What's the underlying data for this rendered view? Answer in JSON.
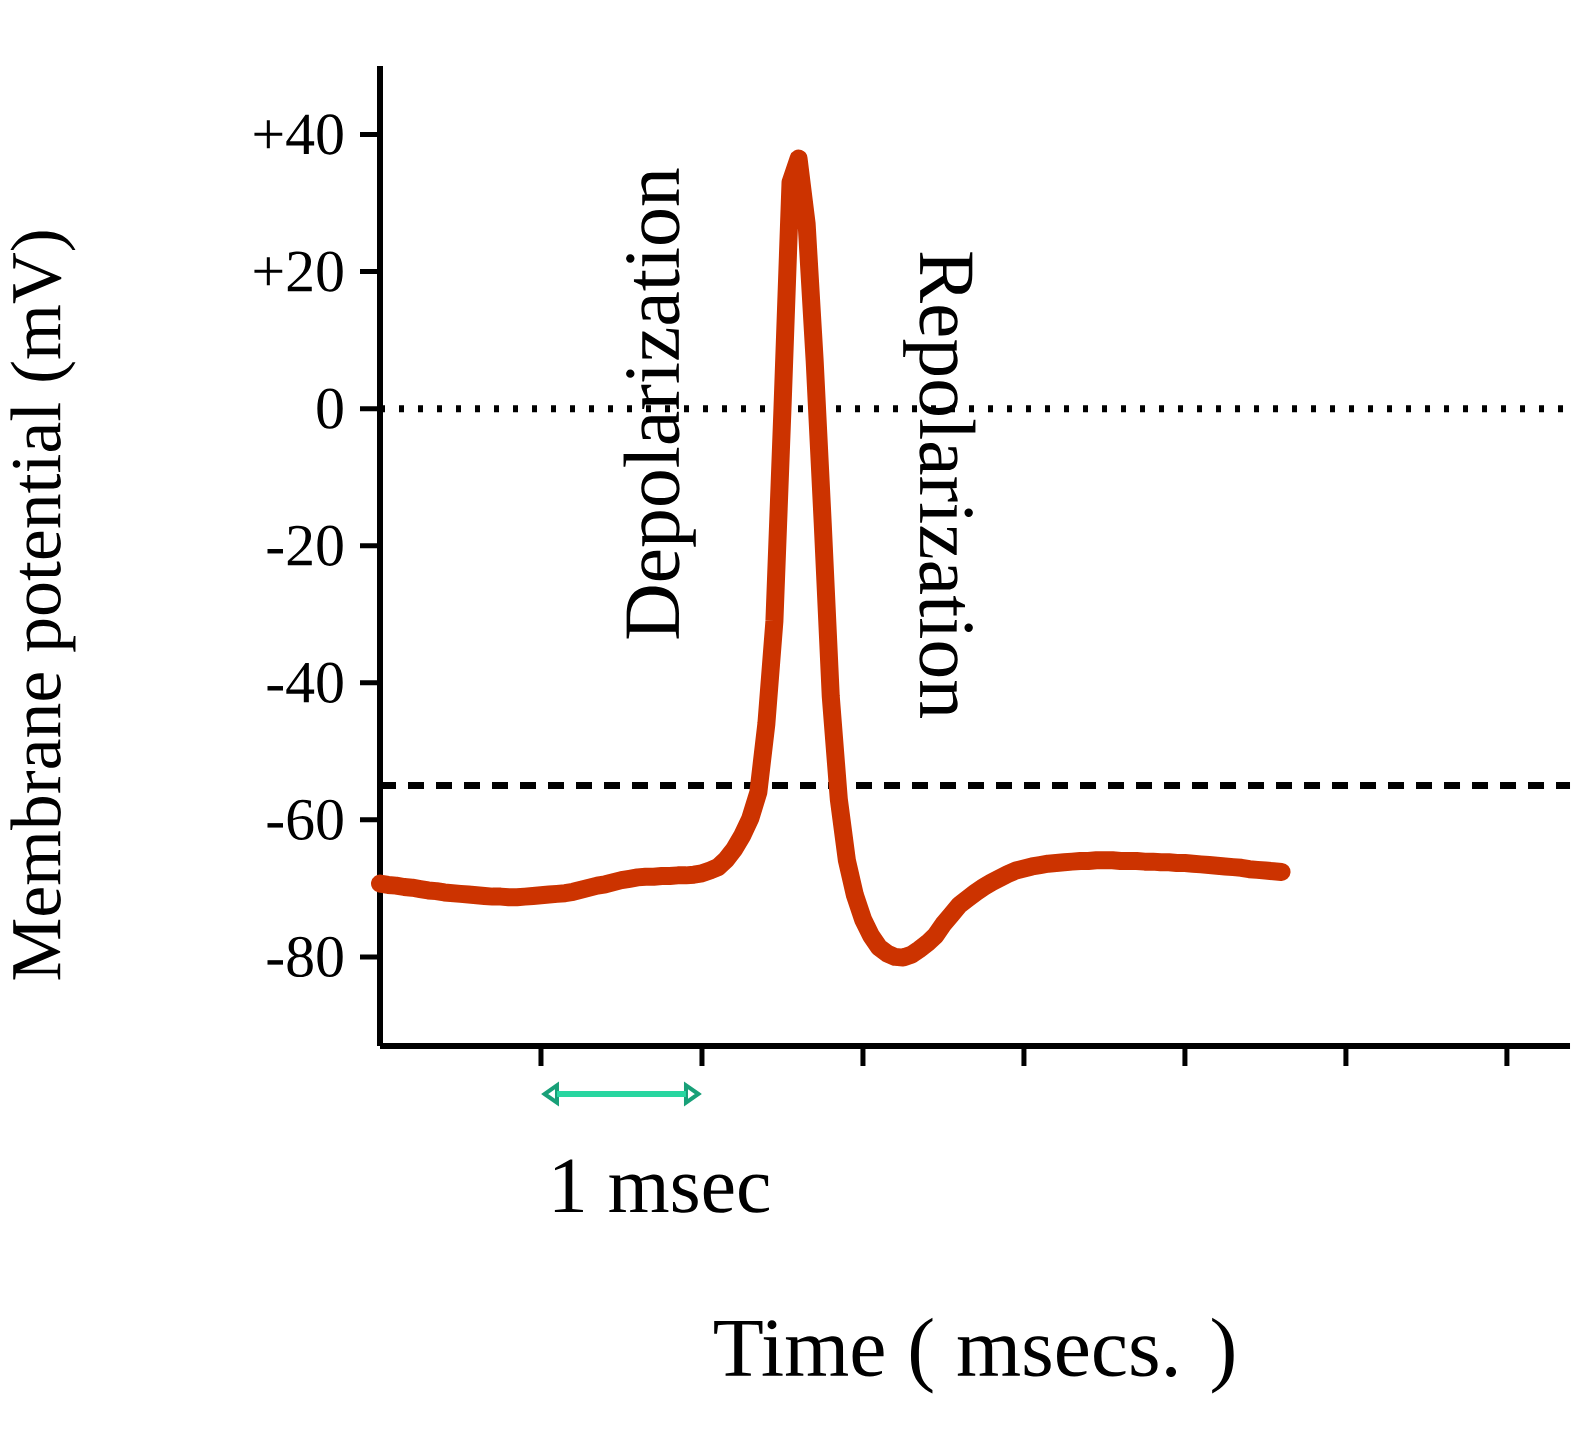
{
  "chart_data": {
    "type": "line",
    "xlabel": "Time ( msecs. )",
    "ylabel": "Membrane potential (mV)",
    "categories": [
      null,
      null,
      null,
      null,
      null,
      null,
      null,
      null,
      null,
      null,
      null,
      null,
      null,
      null,
      null,
      null,
      null,
      null,
      null,
      null,
      null,
      null,
      null,
      null,
      null,
      null,
      null,
      null,
      null,
      null,
      null,
      null,
      null,
      null,
      null,
      null,
      null,
      null,
      null,
      null,
      null,
      null,
      null,
      null,
      null,
      null,
      null,
      null,
      null,
      null,
      null,
      null,
      null,
      null,
      null,
      null,
      null,
      null,
      null,
      null,
      null,
      null,
      null,
      null,
      null,
      null,
      null,
      null,
      null,
      null,
      null,
      null,
      null,
      null,
      null,
      null,
      null,
      null,
      null,
      null,
      null,
      null,
      null,
      null,
      null,
      null,
      null,
      null,
      null,
      null,
      null,
      null,
      null,
      null,
      null,
      null,
      null,
      null,
      null,
      null,
      null,
      null,
      null,
      null,
      null,
      null,
      null,
      null,
      null,
      null,
      null,
      null,
      null
    ],
    "series": [
      {
        "color": "#cc3300",
        "values": [
          -69.3,
          -69.5,
          -69.6,
          -69.8,
          -69.9,
          -70.1,
          -70.3,
          -70.4,
          -70.6,
          -70.7,
          -70.8,
          -70.9,
          -71.0,
          -71.1,
          -71.2,
          -71.2,
          -71.3,
          -71.3,
          -71.2,
          -71.1,
          -71.0,
          -70.9,
          -70.8,
          -70.7,
          -70.5,
          -70.2,
          -69.9,
          -69.6,
          -69.4,
          -69.1,
          -68.8,
          -68.6,
          -68.4,
          -68.3,
          -68.3,
          -68.2,
          -68.2,
          -68.1,
          -68.1,
          -68.0,
          -67.8,
          -67.4,
          -66.9,
          -65.8,
          -64.3,
          -62.3,
          -59.8,
          -56.0,
          -46,
          -31,
          0,
          33,
          36.5,
          27,
          7,
          -16.7,
          -42,
          -57,
          -65.9,
          -71,
          -74.5,
          -76.9,
          -78.6,
          -79.5,
          -80.0,
          -80.1,
          -79.7,
          -78.9,
          -78.0,
          -76.9,
          -75.2,
          -73.8,
          -72.4,
          -71.5,
          -70.6,
          -69.8,
          -69.1,
          -68.5,
          -67.9,
          -67.4,
          -67.1,
          -66.8,
          -66.6,
          -66.4,
          -66.3,
          -66.2,
          -66.1,
          -66.0,
          -66.0,
          -65.9,
          -65.9,
          -65.9,
          -66.0,
          -66.0,
          -66.0,
          -66.1,
          -66.1,
          -66.2,
          -66.2,
          -66.3,
          -66.3,
          -66.4,
          -66.5,
          -66.6,
          -66.7,
          -66.8,
          -66.9,
          -67.0,
          -67.2,
          -67.3,
          -67.4,
          -67.5,
          -67.6
        ]
      }
    ],
    "ylim": [
      -93,
      50
    ],
    "yticks": [
      {
        "value": -80,
        "label": "-80"
      },
      {
        "value": -60,
        "label": "-60"
      },
      {
        "value": -40,
        "label": "-40"
      },
      {
        "value": -20,
        "label": "-20"
      },
      {
        "value": 0,
        "label": "0"
      },
      {
        "value": 20,
        "label": "+20"
      },
      {
        "value": 40,
        "label": "+40"
      }
    ],
    "ref_lines": [
      {
        "axis": "y",
        "value": 0,
        "color": "#000000",
        "line_style": "dotted"
      },
      {
        "axis": "y",
        "value": -55,
        "color": "#000000",
        "line_style": "dashed"
      }
    ],
    "annotations": [
      "Depolarization",
      "Repolarization",
      "1 msec"
    ],
    "marker": "none",
    "line_style": "solid",
    "grid": false,
    "legend": false
  }
}
